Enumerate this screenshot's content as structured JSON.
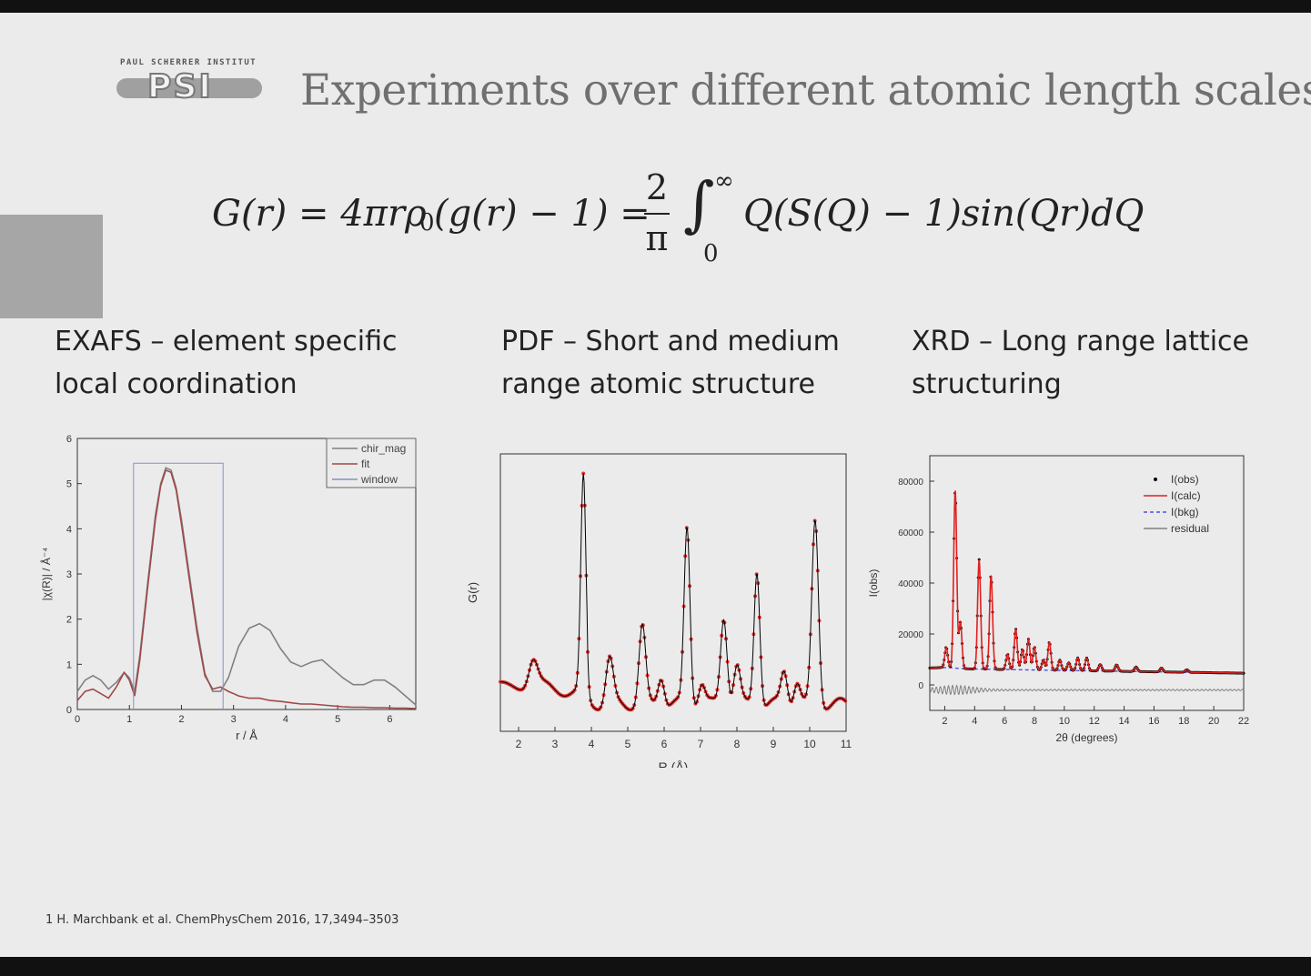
{
  "logo": {
    "top_text": "PAUL SCHERRER INSTITUT",
    "mark": "PSI"
  },
  "title": "Experiments over different atomic length scales",
  "equation": {
    "lhs": "G(r) = 4πrρ",
    "sub0": "0",
    "mid": "(g(r) − 1) =",
    "frac_num": "2",
    "frac_den": "π",
    "integral": "∫",
    "upper": "∞",
    "lower": "0",
    "rhs": "Q(S(Q) − 1)sin(Qr)dQ"
  },
  "headings": {
    "exafs": [
      "EXAFS – element specific",
      "local coordination"
    ],
    "pdf": [
      "PDF – Short and medium",
      "range atomic structure"
    ],
    "xrd": [
      "XRD – Long range lattice",
      "structuring"
    ]
  },
  "footnote": "1 H. Marchbank et al. ChemPhysChem 2016, 17,3494–3503",
  "chart_data": [
    {
      "type": "line",
      "xlabel": "r / Å",
      "ylabel": "|χ(R)| / Å⁻⁴",
      "xlim": [
        0,
        6.5
      ],
      "ylim": [
        0,
        6
      ],
      "xticks": [
        0,
        1,
        2,
        3,
        4,
        5,
        6
      ],
      "yticks": [
        0,
        1,
        2,
        3,
        4,
        5,
        6
      ],
      "legend": "top-right",
      "colors": {
        "chir_mag": "#808080",
        "fit": "#a04848",
        "window": "#8890c8"
      },
      "series": [
        {
          "name": "chir_mag",
          "x": [
            0,
            0.15,
            0.3,
            0.45,
            0.6,
            0.75,
            0.9,
            1.0,
            1.1,
            1.2,
            1.35,
            1.5,
            1.6,
            1.7,
            1.8,
            1.9,
            2.0,
            2.15,
            2.3,
            2.45,
            2.6,
            2.75,
            2.9,
            3.1,
            3.3,
            3.5,
            3.7,
            3.9,
            4.1,
            4.3,
            4.5,
            4.7,
            4.9,
            5.1,
            5.3,
            5.5,
            5.7,
            5.9,
            6.1,
            6.3,
            6.5
          ],
          "y": [
            0.4,
            0.65,
            0.75,
            0.65,
            0.45,
            0.6,
            0.82,
            0.7,
            0.4,
            1.2,
            2.8,
            4.3,
            5.0,
            5.35,
            5.3,
            4.9,
            4.2,
            3.0,
            1.8,
            0.8,
            0.4,
            0.4,
            0.7,
            1.4,
            1.8,
            1.9,
            1.75,
            1.35,
            1.05,
            0.95,
            1.05,
            1.1,
            0.9,
            0.7,
            0.55,
            0.55,
            0.65,
            0.65,
            0.5,
            0.3,
            0.1
          ]
        },
        {
          "name": "fit",
          "x": [
            0,
            0.15,
            0.3,
            0.45,
            0.6,
            0.75,
            0.9,
            1.0,
            1.1,
            1.2,
            1.35,
            1.5,
            1.6,
            1.7,
            1.8,
            1.9,
            2.0,
            2.15,
            2.3,
            2.45,
            2.6,
            2.75,
            2.9,
            3.1,
            3.3,
            3.5,
            3.7,
            3.9,
            4.1,
            4.3,
            4.5,
            4.7,
            4.9,
            5.1,
            5.3,
            5.5,
            5.7,
            5.9,
            6.1,
            6.3,
            6.5
          ],
          "y": [
            0.2,
            0.4,
            0.45,
            0.35,
            0.25,
            0.5,
            0.82,
            0.65,
            0.3,
            1.1,
            2.7,
            4.2,
            4.95,
            5.3,
            5.25,
            4.85,
            4.1,
            2.9,
            1.7,
            0.75,
            0.45,
            0.5,
            0.4,
            0.3,
            0.25,
            0.25,
            0.2,
            0.18,
            0.15,
            0.12,
            0.12,
            0.1,
            0.08,
            0.06,
            0.05,
            0.05,
            0.04,
            0.04,
            0.03,
            0.03,
            0.02
          ]
        },
        {
          "name": "window",
          "x": [
            1.08,
            1.08,
            2.8,
            2.8
          ],
          "y": [
            0,
            5.45,
            5.45,
            0
          ]
        }
      ]
    },
    {
      "type": "line",
      "xlabel": "R  (Å)",
      "ylabel": "G(r)",
      "xlim": [
        1.5,
        11
      ],
      "xticks": [
        2,
        3,
        4,
        5,
        6,
        7,
        8,
        9,
        10,
        11
      ],
      "colors": {
        "observed": "#e03030",
        "calculated": "#000000"
      },
      "peaks": [
        {
          "center": 2.4,
          "height": 0.22,
          "width": 0.12
        },
        {
          "center": 3.78,
          "height": 1.8,
          "width": 0.07
        },
        {
          "center": 4.5,
          "height": 0.38,
          "width": 0.1
        },
        {
          "center": 5.4,
          "height": 0.65,
          "width": 0.09
        },
        {
          "center": 5.92,
          "height": 0.25,
          "width": 0.09
        },
        {
          "center": 6.63,
          "height": 1.5,
          "width": 0.08
        },
        {
          "center": 7.03,
          "height": 0.18,
          "width": 0.09
        },
        {
          "center": 7.64,
          "height": 0.75,
          "width": 0.09
        },
        {
          "center": 8.0,
          "height": 0.32,
          "width": 0.09
        },
        {
          "center": 8.55,
          "height": 1.15,
          "width": 0.08
        },
        {
          "center": 9.3,
          "height": 0.28,
          "width": 0.09
        },
        {
          "center": 9.65,
          "height": 0.2,
          "width": 0.09
        },
        {
          "center": 10.15,
          "height": 1.55,
          "width": 0.09
        }
      ]
    },
    {
      "type": "line",
      "xlabel": "2θ (degrees)",
      "ylabel": "I(obs)",
      "xlim": [
        1,
        22
      ],
      "ylim": [
        -10000,
        90000
      ],
      "xticks": [
        2,
        4,
        6,
        8,
        10,
        12,
        14,
        16,
        18,
        20,
        22
      ],
      "yticks": [
        0,
        20000,
        40000,
        60000,
        80000
      ],
      "legend": "top-right",
      "colors": {
        "I(obs)": "#000000",
        "I(calc)": "#e02020",
        "I(bkg)": "#5050e0",
        "residual": "#808080"
      },
      "series_names": [
        "I(obs)",
        "I(calc)",
        "I(bkg)",
        "residual"
      ],
      "peaks": [
        {
          "center": 2.1,
          "height": 8000,
          "width": 0.1
        },
        {
          "center": 2.7,
          "height": 70000,
          "width": 0.1
        },
        {
          "center": 3.05,
          "height": 18000,
          "width": 0.1
        },
        {
          "center": 4.3,
          "height": 43000,
          "width": 0.1
        },
        {
          "center": 5.1,
          "height": 37000,
          "width": 0.1
        },
        {
          "center": 6.2,
          "height": 6000,
          "width": 0.1
        },
        {
          "center": 6.75,
          "height": 16000,
          "width": 0.1
        },
        {
          "center": 7.2,
          "height": 8000,
          "width": 0.1
        },
        {
          "center": 7.6,
          "height": 12000,
          "width": 0.1
        },
        {
          "center": 8.0,
          "height": 9000,
          "width": 0.1
        },
        {
          "center": 8.6,
          "height": 4000,
          "width": 0.1
        },
        {
          "center": 9.0,
          "height": 11000,
          "width": 0.1
        },
        {
          "center": 9.7,
          "height": 4000,
          "width": 0.1
        },
        {
          "center": 10.3,
          "height": 3000,
          "width": 0.1
        },
        {
          "center": 10.9,
          "height": 5000,
          "width": 0.1
        },
        {
          "center": 11.5,
          "height": 5000,
          "width": 0.1
        },
        {
          "center": 12.4,
          "height": 2500,
          "width": 0.1
        },
        {
          "center": 13.5,
          "height": 2500,
          "width": 0.1
        },
        {
          "center": 14.8,
          "height": 1800,
          "width": 0.1
        },
        {
          "center": 16.5,
          "height": 1500,
          "width": 0.1
        },
        {
          "center": 18.2,
          "height": 1000,
          "width": 0.1
        }
      ]
    }
  ]
}
